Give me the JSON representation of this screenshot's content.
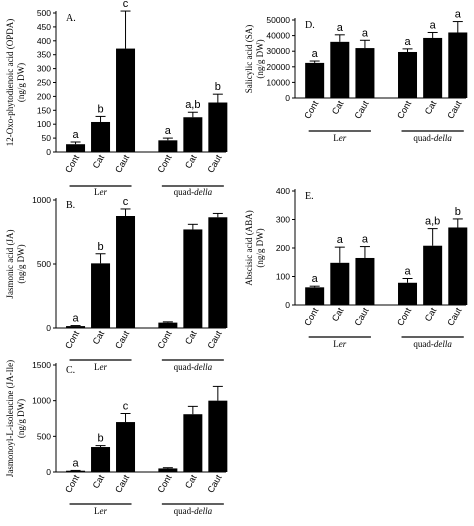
{
  "chart_data": [
    {
      "type": "bar",
      "panel_label": "A.",
      "ylabel": "12-Oxo-phytodienoic acid (OPDA)\n(ng/g DW)",
      "ylim": [
        0,
        500
      ],
      "yticks": [
        0,
        50,
        100,
        150,
        200,
        250,
        300,
        350,
        400,
        450,
        500
      ],
      "categories": [
        "Cont",
        "Cat",
        "Caut",
        "Cont",
        "Cat",
        "Caut"
      ],
      "groups": [
        {
          "name": "Ler",
          "italic": "er",
          "prefix": "L"
        },
        {
          "name": "quad-della",
          "prefix": "quad-",
          "italic": "della"
        }
      ],
      "values": [
        28,
        108,
        372,
        42,
        125,
        178
      ],
      "errors": [
        8,
        20,
        135,
        8,
        18,
        30
      ],
      "letters": [
        "a",
        "b",
        "c",
        "a",
        "a,b",
        "b"
      ]
    },
    {
      "type": "bar",
      "panel_label": "B.",
      "ylabel": "Jasmonic acid (JA)\n(ng/g DW)",
      "ylim": [
        0,
        1000
      ],
      "yticks": [
        0,
        500,
        1000
      ],
      "categories": [
        "Cont",
        "Cat",
        "Caut",
        "Cont",
        "Cat",
        "Caut"
      ],
      "groups": [
        {
          "name": "Ler",
          "italic": "er",
          "prefix": "L"
        },
        {
          "name": "quad-della",
          "prefix": "quad-",
          "italic": "della"
        }
      ],
      "values": [
        15,
        505,
        875,
        42,
        770,
        865
      ],
      "errors": [
        4,
        75,
        55,
        6,
        40,
        30
      ],
      "letters": [
        "a",
        "b",
        "c",
        "",
        "",
        ""
      ]
    },
    {
      "type": "bar",
      "panel_label": "C.",
      "ylabel": "Jasmonoyl-L-isoleucine (JA-Ile)\n(ng/g DW)",
      "ylim": [
        0,
        1500
      ],
      "yticks": [
        0,
        500,
        1000,
        1500
      ],
      "categories": [
        "Cont",
        "Cat",
        "Caut",
        "Cont",
        "Cat",
        "Caut"
      ],
      "groups": [
        {
          "name": "Ler",
          "italic": "er",
          "prefix": "L"
        },
        {
          "name": "quad-della",
          "prefix": "quad-",
          "italic": "della"
        }
      ],
      "values": [
        18,
        350,
        700,
        50,
        810,
        1000
      ],
      "errors": [
        4,
        20,
        120,
        10,
        110,
        200
      ],
      "letters": [
        "a",
        "b",
        "c",
        "",
        "",
        ""
      ]
    },
    {
      "type": "bar",
      "panel_label": "D.",
      "ylabel": "Salicylic acid (SA)\n(ng/g DW)",
      "ylim": [
        0,
        50000
      ],
      "yticks": [
        0,
        10000,
        20000,
        30000,
        40000,
        50000
      ],
      "categories": [
        "Cont",
        "Cat",
        "Caut",
        "Cont",
        "Cat",
        "Caut"
      ],
      "groups": [
        {
          "name": "Ler",
          "italic": "er",
          "prefix": "L"
        },
        {
          "name": "quad-della",
          "prefix": "quad-",
          "italic": "della"
        }
      ],
      "values": [
        22500,
        36000,
        32000,
        29500,
        38500,
        42000
      ],
      "errors": [
        1200,
        4500,
        5000,
        2000,
        3500,
        7000
      ],
      "letters": [
        "a",
        "a",
        "a",
        "a",
        "a",
        "a"
      ]
    },
    {
      "type": "bar",
      "panel_label": "E.",
      "ylabel": "Abscisic acid (ABA)\n(ng/g DW)",
      "ylim": [
        0,
        400
      ],
      "yticks": [
        0,
        100,
        200,
        300,
        400
      ],
      "categories": [
        "Cont",
        "Cat",
        "Caut",
        "Cont",
        "Cat",
        "Caut"
      ],
      "groups": [
        {
          "name": "Ler",
          "italic": "er",
          "prefix": "L"
        },
        {
          "name": "quad-della",
          "prefix": "quad-",
          "italic": "della"
        }
      ],
      "values": [
        62,
        148,
        165,
        78,
        208,
        272
      ],
      "errors": [
        4,
        55,
        40,
        15,
        60,
        30
      ],
      "letters": [
        "a",
        "a",
        "a",
        "a",
        "a,b",
        "b"
      ]
    }
  ],
  "colors": {
    "bar": "#000000",
    "axis": "#000000",
    "background": "#ffffff"
  }
}
